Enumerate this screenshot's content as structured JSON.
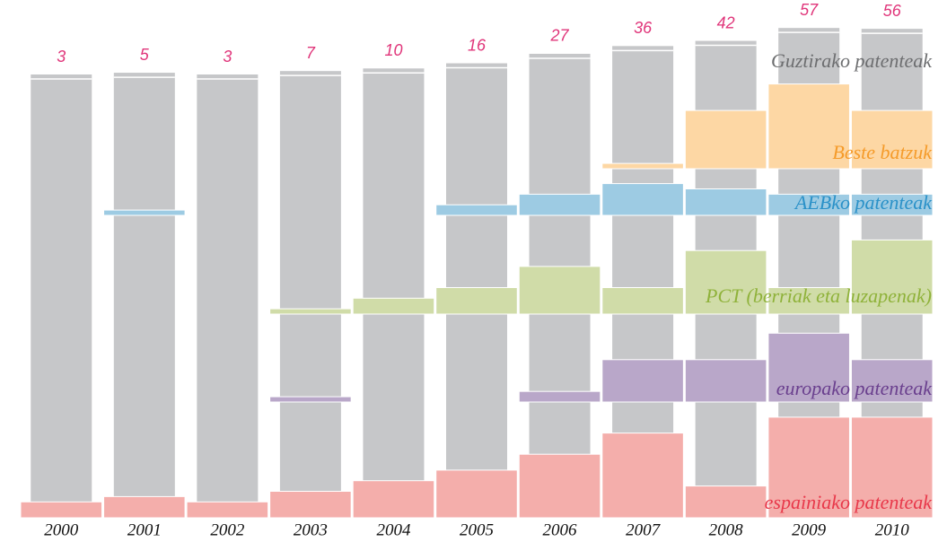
{
  "chart_data": {
    "type": "banded-bar",
    "categories": [
      "2000",
      "2001",
      "2002",
      "2003",
      "2004",
      "2005",
      "2006",
      "2007",
      "2008",
      "2009",
      "2010"
    ],
    "series": [
      {
        "name": "Guztirako patenteak",
        "color": "#c6c7c9",
        "label_color": "#6d6e70",
        "values": [
          3,
          5,
          3,
          7,
          10,
          16,
          27,
          36,
          42,
          57,
          56
        ]
      },
      {
        "name": "espainiako patenteak",
        "color": "#f4aeab",
        "label_color": "#e8384a",
        "values": [
          3,
          4,
          3,
          5,
          7,
          9,
          12,
          16,
          6,
          19,
          19
        ]
      },
      {
        "name": "europako patenteak",
        "color": "#b9a7c9",
        "label_color": "#6a3f8e",
        "values": [
          0,
          0,
          0,
          1,
          0,
          0,
          2,
          8,
          8,
          13,
          8
        ]
      },
      {
        "name": "PCT (berriak eta luzapenak)",
        "color": "#d0dca8",
        "label_color": "#8fb23a",
        "values": [
          0,
          0,
          0,
          1,
          3,
          5,
          9,
          5,
          12,
          5,
          14
        ]
      },
      {
        "name": "AEBko patenteak",
        "color": "#9dcbe3",
        "label_color": "#2a91c8",
        "values": [
          0,
          1,
          0,
          0,
          0,
          2,
          4,
          6,
          5,
          4,
          4
        ]
      },
      {
        "name": "Beste batzuk",
        "color": "#fdd7a4",
        "label_color": "#f59b2a",
        "values": [
          0,
          0,
          0,
          0,
          0,
          0,
          0,
          1,
          11,
          16,
          11
        ]
      }
    ],
    "total_label_color": "#e0357a"
  }
}
